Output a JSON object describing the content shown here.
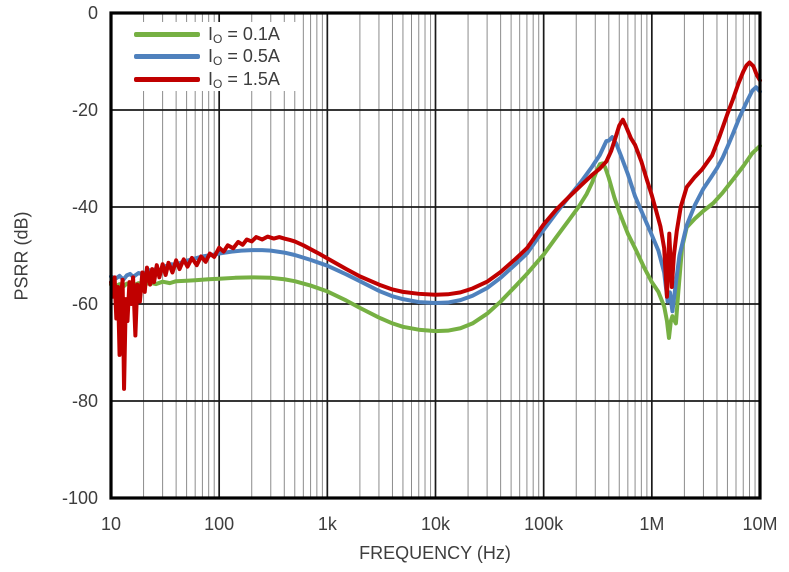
{
  "chart_data": {
    "type": "line",
    "title": "",
    "xlabel": "FREQUENCY (Hz)",
    "ylabel": "PSRR (dB)",
    "x_scale": "log",
    "xlim": [
      10,
      10000000
    ],
    "ylim": [
      -100,
      0
    ],
    "grid": "on",
    "legend_position": "top-left",
    "x_ticks": [
      {
        "value": 10,
        "label": "10"
      },
      {
        "value": 100,
        "label": "100"
      },
      {
        "value": 1000,
        "label": "1k"
      },
      {
        "value": 10000,
        "label": "10k"
      },
      {
        "value": 100000,
        "label": "100k"
      },
      {
        "value": 1000000,
        "label": "1M"
      },
      {
        "value": 10000000,
        "label": "10M"
      }
    ],
    "y_ticks": [
      {
        "value": 0,
        "label": "0"
      },
      {
        "value": -20,
        "label": "-20"
      },
      {
        "value": -40,
        "label": "-40"
      },
      {
        "value": -60,
        "label": "-60"
      },
      {
        "value": -80,
        "label": "-80"
      },
      {
        "value": -100,
        "label": "-100"
      }
    ],
    "colors": {
      "grid_minor": "#8c8c8c",
      "grid_major": "#1a1a1a",
      "axis_border": "#000000",
      "text": "#3d3d3d",
      "series_green": "#76B043",
      "series_blue": "#4F81BD",
      "series_red": "#C00000"
    },
    "series": [
      {
        "name": "IO = 0.1A",
        "color": "#76B043",
        "points": [
          [
            10,
            -56.0
          ],
          [
            11,
            -56.4
          ],
          [
            12,
            -55.9
          ],
          [
            13,
            -56.4
          ],
          [
            14,
            -55.8
          ],
          [
            16,
            -56.2
          ],
          [
            18,
            -55.7
          ],
          [
            20,
            -56.0
          ],
          [
            23,
            -55.6
          ],
          [
            26,
            -55.9
          ],
          [
            30,
            -55.4
          ],
          [
            35,
            -55.7
          ],
          [
            40,
            -55.3
          ],
          [
            50,
            -55.2
          ],
          [
            60,
            -55.1
          ],
          [
            80,
            -54.9
          ],
          [
            100,
            -54.8
          ],
          [
            140,
            -54.6
          ],
          [
            200,
            -54.5
          ],
          [
            300,
            -54.6
          ],
          [
            400,
            -54.9
          ],
          [
            500,
            -55.3
          ],
          [
            700,
            -56.2
          ],
          [
            1000,
            -57.4
          ],
          [
            1500,
            -59.3
          ],
          [
            2000,
            -60.8
          ],
          [
            3000,
            -62.8
          ],
          [
            4000,
            -64.0
          ],
          [
            5000,
            -64.7
          ],
          [
            7000,
            -65.3
          ],
          [
            10000,
            -65.6
          ],
          [
            13000,
            -65.5
          ],
          [
            17000,
            -65.0
          ],
          [
            22000,
            -64.0
          ],
          [
            30000,
            -62.0
          ],
          [
            40000,
            -59.5
          ],
          [
            55000,
            -56.3
          ],
          [
            70000,
            -53.8
          ],
          [
            100000,
            -49.8
          ],
          [
            130000,
            -46.3
          ],
          [
            170000,
            -42.8
          ],
          [
            210000,
            -40.0
          ],
          [
            250000,
            -37.3
          ],
          [
            280000,
            -35.0
          ],
          [
            310000,
            -32.5
          ],
          [
            330000,
            -31.2
          ],
          [
            350000,
            -31.0
          ],
          [
            370000,
            -31.8
          ],
          [
            400000,
            -34.0
          ],
          [
            450000,
            -38.0
          ],
          [
            500000,
            -41.0
          ],
          [
            600000,
            -45.5
          ],
          [
            700000,
            -48.5
          ],
          [
            850000,
            -52.5
          ],
          [
            1000000,
            -55.5
          ],
          [
            1150000,
            -57.5
          ],
          [
            1300000,
            -60.5
          ],
          [
            1380000,
            -63.5
          ],
          [
            1440000,
            -67.0
          ],
          [
            1500000,
            -63.5
          ],
          [
            1550000,
            -62.5
          ],
          [
            1600000,
            -63.2
          ],
          [
            1670000,
            -64.0
          ],
          [
            1750000,
            -58.0
          ],
          [
            1900000,
            -48.5
          ],
          [
            2100000,
            -44.2
          ],
          [
            2500000,
            -42.4
          ],
          [
            3000000,
            -40.8
          ],
          [
            3700000,
            -39.2
          ],
          [
            4500000,
            -37.1
          ],
          [
            5600000,
            -34.4
          ],
          [
            7000000,
            -31.6
          ],
          [
            8500000,
            -28.9
          ],
          [
            10000000,
            -27.4
          ]
        ]
      },
      {
        "name": "IO = 0.5A",
        "color": "#4F81BD",
        "points": [
          [
            10,
            -54.3
          ],
          [
            11,
            -54.8
          ],
          [
            12,
            -54.2
          ],
          [
            13,
            -55.0
          ],
          [
            14,
            -54.1
          ],
          [
            15,
            -53.8
          ],
          [
            16,
            -54.4
          ],
          [
            18,
            -53.6
          ],
          [
            20,
            -54.0
          ],
          [
            22,
            -52.9
          ],
          [
            24,
            -53.4
          ],
          [
            26,
            -52.7
          ],
          [
            29,
            -53.1
          ],
          [
            32,
            -52.2
          ],
          [
            36,
            -51.8
          ],
          [
            40,
            -51.9
          ],
          [
            45,
            -51.4
          ],
          [
            50,
            -51.1
          ],
          [
            60,
            -50.6
          ],
          [
            70,
            -50.2
          ],
          [
            85,
            -49.9
          ],
          [
            100,
            -49.6
          ],
          [
            130,
            -49.2
          ],
          [
            160,
            -49.0
          ],
          [
            200,
            -48.9
          ],
          [
            250,
            -48.9
          ],
          [
            300,
            -49.0
          ],
          [
            400,
            -49.4
          ],
          [
            500,
            -49.9
          ],
          [
            700,
            -50.9
          ],
          [
            1000,
            -52.1
          ],
          [
            1500,
            -53.9
          ],
          [
            2000,
            -55.3
          ],
          [
            3000,
            -57.3
          ],
          [
            4000,
            -58.4
          ],
          [
            5000,
            -59.0
          ],
          [
            7000,
            -59.6
          ],
          [
            10000,
            -59.8
          ],
          [
            13000,
            -59.7
          ],
          [
            17000,
            -59.2
          ],
          [
            22000,
            -58.3
          ],
          [
            30000,
            -56.7
          ],
          [
            40000,
            -54.6
          ],
          [
            55000,
            -51.8
          ],
          [
            70000,
            -49.6
          ],
          [
            100000,
            -44.7
          ],
          [
            130000,
            -41.3
          ],
          [
            170000,
            -38.0
          ],
          [
            220000,
            -34.9
          ],
          [
            280000,
            -31.7
          ],
          [
            330000,
            -29.3
          ],
          [
            360000,
            -27.5
          ],
          [
            380000,
            -26.4
          ],
          [
            400000,
            -26.3
          ],
          [
            430000,
            -25.6
          ],
          [
            470000,
            -27.0
          ],
          [
            520000,
            -29.5
          ],
          [
            600000,
            -33.2
          ],
          [
            700000,
            -37.8
          ],
          [
            800000,
            -40.8
          ],
          [
            1000000,
            -45.8
          ],
          [
            1150000,
            -49.0
          ],
          [
            1300000,
            -53.5
          ],
          [
            1400000,
            -59.5
          ],
          [
            1470000,
            -57.6
          ],
          [
            1550000,
            -61.5
          ],
          [
            1650000,
            -56.5
          ],
          [
            1800000,
            -50.0
          ],
          [
            2100000,
            -43.8
          ],
          [
            2500000,
            -39.6
          ],
          [
            3000000,
            -36.2
          ],
          [
            3500000,
            -34.0
          ],
          [
            4000000,
            -32.0
          ],
          [
            4500000,
            -29.9
          ],
          [
            5000000,
            -27.6
          ],
          [
            5600000,
            -25.0
          ],
          [
            6500000,
            -21.4
          ],
          [
            7500000,
            -18.4
          ],
          [
            8500000,
            -16.0
          ],
          [
            9200000,
            -15.3
          ],
          [
            10000000,
            -16.2
          ]
        ]
      },
      {
        "name": "IO = 1.5A",
        "color": "#C00000",
        "points": [
          [
            10,
            -55.5
          ],
          [
            10.4,
            -58.5
          ],
          [
            10.8,
            -54.5
          ],
          [
            11.2,
            -63.0
          ],
          [
            11.6,
            -56.5
          ],
          [
            12.0,
            -70.5
          ],
          [
            12.4,
            -58.0
          ],
          [
            12.8,
            -55.0
          ],
          [
            13.2,
            -77.5
          ],
          [
            13.7,
            -59.0
          ],
          [
            14.2,
            -63.5
          ],
          [
            14.8,
            -55.5
          ],
          [
            15.4,
            -60.0
          ],
          [
            16,
            -54.5
          ],
          [
            16.8,
            -66.5
          ],
          [
            17.5,
            -56.0
          ],
          [
            18.5,
            -59.5
          ],
          [
            19.5,
            -53.5
          ],
          [
            20.5,
            -57.5
          ],
          [
            21.5,
            -52.5
          ],
          [
            23,
            -56.0
          ],
          [
            24,
            -52.8
          ],
          [
            25,
            -55.5
          ],
          [
            26.5,
            -52.0
          ],
          [
            28,
            -54.5
          ],
          [
            30,
            -51.8
          ],
          [
            32,
            -54.0
          ],
          [
            34,
            -51.5
          ],
          [
            37,
            -53.5
          ],
          [
            40,
            -51.0
          ],
          [
            43,
            -52.8
          ],
          [
            47,
            -50.8
          ],
          [
            51,
            -52.3
          ],
          [
            56,
            -50.5
          ],
          [
            62,
            -52.0
          ],
          [
            68,
            -50.2
          ],
          [
            75,
            -51.3
          ],
          [
            82,
            -49.6
          ],
          [
            90,
            -50.3
          ],
          [
            100,
            -48.4
          ],
          [
            110,
            -49.2
          ],
          [
            120,
            -47.9
          ],
          [
            135,
            -48.5
          ],
          [
            150,
            -47.2
          ],
          [
            165,
            -47.8
          ],
          [
            180,
            -46.7
          ],
          [
            200,
            -47.1
          ],
          [
            220,
            -46.2
          ],
          [
            250,
            -46.7
          ],
          [
            280,
            -46.1
          ],
          [
            320,
            -46.5
          ],
          [
            360,
            -46.2
          ],
          [
            400,
            -46.5
          ],
          [
            450,
            -46.8
          ],
          [
            500,
            -47.1
          ],
          [
            600,
            -47.9
          ],
          [
            700,
            -48.7
          ],
          [
            850,
            -49.7
          ],
          [
            1000,
            -50.6
          ],
          [
            1500,
            -52.8
          ],
          [
            2000,
            -54.3
          ],
          [
            3000,
            -56.0
          ],
          [
            4000,
            -57.0
          ],
          [
            5000,
            -57.5
          ],
          [
            7000,
            -57.9
          ],
          [
            10000,
            -58.1
          ],
          [
            13000,
            -58.0
          ],
          [
            17000,
            -57.6
          ],
          [
            22000,
            -56.8
          ],
          [
            30000,
            -55.4
          ],
          [
            40000,
            -53.4
          ],
          [
            55000,
            -50.7
          ],
          [
            70000,
            -48.5
          ],
          [
            100000,
            -43.6
          ],
          [
            130000,
            -40.6
          ],
          [
            170000,
            -38.0
          ],
          [
            220000,
            -35.6
          ],
          [
            280000,
            -33.4
          ],
          [
            330000,
            -32.1
          ],
          [
            380000,
            -30.6
          ],
          [
            420000,
            -28.5
          ],
          [
            460000,
            -25.8
          ],
          [
            500000,
            -23.2
          ],
          [
            540000,
            -22.0
          ],
          [
            580000,
            -23.5
          ],
          [
            640000,
            -25.8
          ],
          [
            700000,
            -27.2
          ],
          [
            800000,
            -30.6
          ],
          [
            900000,
            -34.4
          ],
          [
            1000000,
            -37.6
          ],
          [
            1100000,
            -40.9
          ],
          [
            1200000,
            -44.0
          ],
          [
            1300000,
            -48.5
          ],
          [
            1380000,
            -58.5
          ],
          [
            1450000,
            -45.5
          ],
          [
            1530000,
            -56.5
          ],
          [
            1600000,
            -50.0
          ],
          [
            1700000,
            -45.0
          ],
          [
            1850000,
            -40.0
          ],
          [
            2100000,
            -35.9
          ],
          [
            2500000,
            -33.8
          ],
          [
            2900000,
            -32.3
          ],
          [
            3600000,
            -29.4
          ],
          [
            4200000,
            -25.6
          ],
          [
            5000000,
            -20.8
          ],
          [
            5600000,
            -17.9
          ],
          [
            6300000,
            -14.6
          ],
          [
            7000000,
            -12.1
          ],
          [
            7500000,
            -10.8
          ],
          [
            8000000,
            -10.2
          ],
          [
            8700000,
            -11.0
          ],
          [
            9300000,
            -12.7
          ],
          [
            10000000,
            -13.9
          ]
        ]
      }
    ],
    "legend": {
      "items": [
        {
          "prefix": "I",
          "sub": "O",
          "rest": " = 0.1A",
          "color": "#76B043"
        },
        {
          "prefix": "I",
          "sub": "O",
          "rest": " = 0.5A",
          "color": "#4F81BD"
        },
        {
          "prefix": "I",
          "sub": "O",
          "rest": " = 1.5A",
          "color": "#C00000"
        }
      ]
    }
  }
}
